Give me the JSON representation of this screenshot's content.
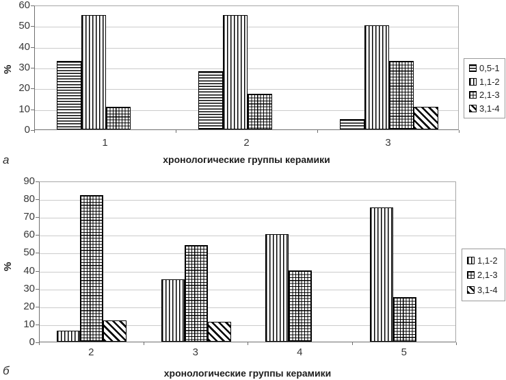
{
  "figure": {
    "background": "#ffffff",
    "panels": [
      "а",
      "б"
    ]
  },
  "colors": {
    "gridline": "#cbcbcb",
    "axis_frame": "#6e6e6e",
    "bar_fill": "#ffffff",
    "bar_stroke": "#000000",
    "text": "#373737"
  },
  "chart_data": [
    {
      "type": "bar",
      "panel": "а",
      "title": "",
      "xlabel": "хронологические группы керамики",
      "ylabel": "%",
      "ylim": [
        0,
        60
      ],
      "ytick_step": 10,
      "grid": true,
      "legend_position": "right",
      "categories": [
        "1",
        "2",
        "3"
      ],
      "series": [
        {
          "name": "0,5-1",
          "pattern": "horizontal-lines",
          "values": [
            33,
            28,
            5
          ]
        },
        {
          "name": "1,1-2",
          "pattern": "vertical-lines",
          "values": [
            55,
            55,
            50
          ]
        },
        {
          "name": "2,1-3",
          "pattern": "grid-crosshatch",
          "values": [
            11,
            17,
            33
          ]
        },
        {
          "name": "3,1-4",
          "pattern": "diagonal-lines",
          "values": [
            0,
            0,
            11
          ]
        }
      ]
    },
    {
      "type": "bar",
      "panel": "б",
      "title": "",
      "xlabel": "хронологические группы керамики",
      "ylabel": "%",
      "ylim": [
        0,
        90
      ],
      "ytick_step": 10,
      "grid": true,
      "legend_position": "right",
      "categories": [
        "2",
        "3",
        "4",
        "5"
      ],
      "series": [
        {
          "name": "1,1-2",
          "pattern": "vertical-lines",
          "values": [
            6,
            35,
            60,
            75
          ]
        },
        {
          "name": "2,1-3",
          "pattern": "grid-crosshatch",
          "values": [
            82,
            54,
            40,
            25
          ]
        },
        {
          "name": "3,1-4",
          "pattern": "diagonal-lines",
          "values": [
            12,
            11,
            0,
            0
          ]
        }
      ]
    }
  ]
}
